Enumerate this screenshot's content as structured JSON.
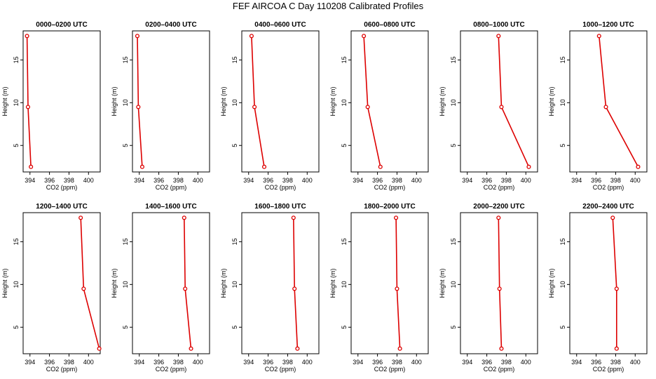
{
  "figure_title": "FEF AIRCOA C  Day 110208  Calibrated Profiles",
  "chart_data": {
    "type": "line",
    "title": "FEF AIRCOA C  Day 110208  Calibrated Profiles",
    "xlabel": "CO2 (ppm)",
    "ylabel": "Height (m)",
    "xlim": [
      393.3,
      401.2
    ],
    "ylim": [
      1.9,
      18.4
    ],
    "x_ticks": [
      394,
      396,
      398,
      400
    ],
    "y_ticks": [
      5,
      10,
      15
    ],
    "x_tick_labels": [
      "394",
      "396",
      "398",
      "400"
    ],
    "y_tick_labels": [
      "5",
      "10",
      "15"
    ],
    "line_color": "#dd0000",
    "heights": [
      17.8,
      9.5,
      2.5
    ],
    "panels": [
      {
        "title": "0000–0200 UTC",
        "x": [
          393.7,
          393.8,
          394.1
        ],
        "y": [
          17.8,
          9.5,
          2.5
        ]
      },
      {
        "title": "0200–0400 UTC",
        "x": [
          393.8,
          393.9,
          394.3
        ],
        "y": [
          17.8,
          9.5,
          2.5
        ]
      },
      {
        "title": "0400–0600 UTC",
        "x": [
          394.3,
          394.6,
          395.6
        ],
        "y": [
          17.8,
          9.5,
          2.5
        ]
      },
      {
        "title": "0600–0800 UTC",
        "x": [
          394.6,
          395.0,
          396.3
        ],
        "y": [
          17.8,
          9.5,
          2.5
        ]
      },
      {
        "title": "0800–1000 UTC",
        "x": [
          397.2,
          397.5,
          400.3
        ],
        "y": [
          17.8,
          9.5,
          2.5
        ]
      },
      {
        "title": "1000–1200 UTC",
        "x": [
          396.3,
          397.0,
          400.3
        ],
        "y": [
          17.8,
          9.5,
          2.5
        ]
      },
      {
        "title": "1200–1400 UTC",
        "x": [
          399.2,
          399.5,
          401.1
        ],
        "y": [
          17.8,
          9.5,
          2.5
        ]
      },
      {
        "title": "1400–1600 UTC",
        "x": [
          398.6,
          398.7,
          399.3
        ],
        "y": [
          17.8,
          9.5,
          2.5
        ]
      },
      {
        "title": "1600–1800 UTC",
        "x": [
          398.6,
          398.7,
          399.0
        ],
        "y": [
          17.8,
          9.5,
          2.5
        ]
      },
      {
        "title": "1800–2000 UTC",
        "x": [
          397.9,
          398.0,
          398.3
        ],
        "y": [
          17.8,
          9.5,
          2.5
        ]
      },
      {
        "title": "2000–2200 UTC",
        "x": [
          397.2,
          397.3,
          397.5
        ],
        "y": [
          17.8,
          9.5,
          2.5
        ]
      },
      {
        "title": "2200–2400 UTC",
        "x": [
          397.7,
          398.1,
          398.1
        ],
        "y": [
          17.8,
          9.5,
          2.5
        ]
      }
    ]
  }
}
